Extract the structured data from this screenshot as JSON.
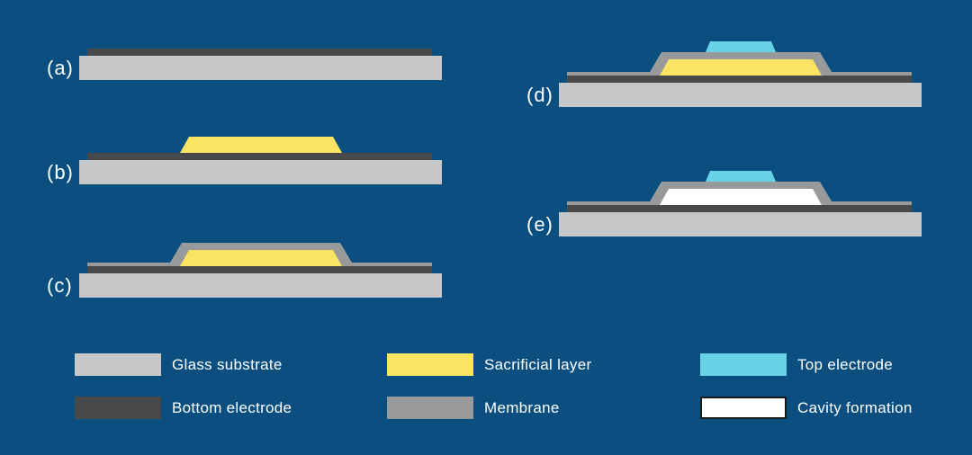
{
  "page": {
    "background_color": "#0A4F7F",
    "text_color": "#FFFFFF"
  },
  "colors": {
    "glass_substrate": "#C6C7C8",
    "bottom_electrode": "#47494B",
    "sacrificial_layer": "#FBE364",
    "membrane": "#97999B",
    "top_electrode": "#67D2E5",
    "cavity": "#FFFFFF",
    "cavity_border": "#1A1A1A"
  },
  "steps": [
    {
      "id": "a",
      "label": "(a)",
      "layers": [
        "glass_substrate",
        "bottom_electrode"
      ]
    },
    {
      "id": "b",
      "label": "(b)",
      "layers": [
        "glass_substrate",
        "bottom_electrode",
        "sacrificial_layer"
      ]
    },
    {
      "id": "c",
      "label": "(c)",
      "layers": [
        "glass_substrate",
        "bottom_electrode",
        "membrane",
        "sacrificial_layer"
      ]
    },
    {
      "id": "d",
      "label": "(d)",
      "layers": [
        "glass_substrate",
        "bottom_electrode",
        "membrane",
        "sacrificial_layer",
        "top_electrode"
      ]
    },
    {
      "id": "e",
      "label": "(e)",
      "layers": [
        "glass_substrate",
        "bottom_electrode",
        "membrane",
        "cavity",
        "top_electrode"
      ]
    }
  ],
  "legend": {
    "items": [
      {
        "label": "Glass substrate",
        "color_key": "glass_substrate",
        "border": false
      },
      {
        "label": "Bottom electrode",
        "color_key": "bottom_electrode",
        "border": false
      },
      {
        "label": "Sacrificial layer",
        "color_key": "sacrificial_layer",
        "border": false
      },
      {
        "label": "Membrane",
        "color_key": "membrane",
        "border": false
      },
      {
        "label": "Top electrode",
        "color_key": "top_electrode",
        "border": false
      },
      {
        "label": "Cavity formation",
        "color_key": "cavity",
        "border": true
      }
    ]
  }
}
